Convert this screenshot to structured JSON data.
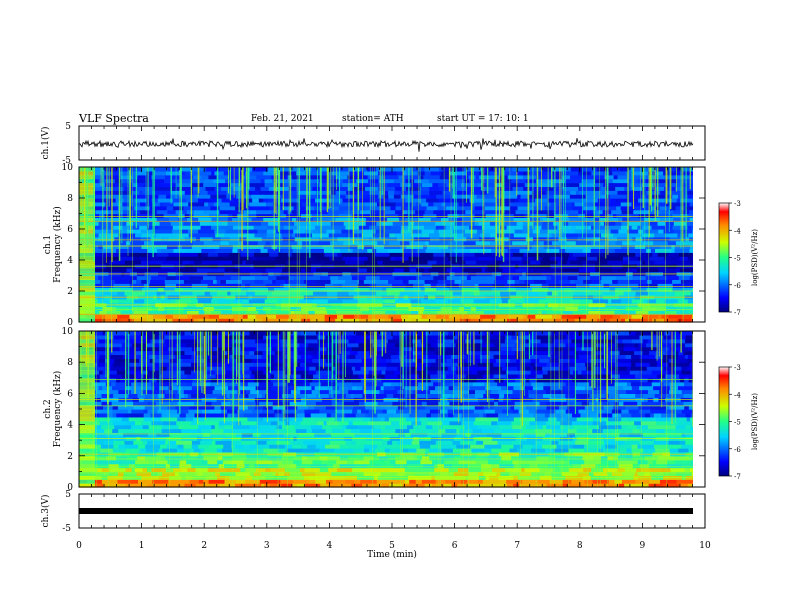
{
  "header": {
    "title": "VLF Spectra",
    "date": "Feb. 21, 2021",
    "station": "station= ATH",
    "start": "start UT = 17: 10: 1"
  },
  "chart_data": [
    {
      "type": "line",
      "panel": "ch1-waveform",
      "ylabel": "ch.1(V)",
      "ylim": [
        -5,
        5
      ],
      "yticks": [
        "5",
        "-5"
      ]
    },
    {
      "type": "heatmap",
      "panel": "ch1-spectrogram",
      "ylabel": "ch.1",
      "ylabel2": "Frequency (kHz)",
      "ylim": [
        0,
        10
      ],
      "yticks": [
        "0",
        "2",
        "4",
        "6",
        "8",
        "10"
      ],
      "colorbar": {
        "label": "log(PSD)(V²/Hz)",
        "ticks": [
          "-3",
          "-4",
          "-5",
          "-6",
          "-7"
        ],
        "range": [
          -7,
          -3
        ]
      }
    },
    {
      "type": "heatmap",
      "panel": "ch2-spectrogram",
      "ylabel": "ch.2",
      "ylabel2": "Frequency (kHz)",
      "ylim": [
        0,
        10
      ],
      "yticks": [
        "0",
        "2",
        "4",
        "6",
        "8",
        "10"
      ],
      "colorbar": {
        "label": "log(PSD)(V²/Hz)",
        "ticks": [
          "-3",
          "-4",
          "-5",
          "-6",
          "-7"
        ],
        "range": [
          -7,
          -3
        ]
      }
    },
    {
      "type": "line",
      "panel": "ch3-waveform",
      "ylabel": "ch.3(V)",
      "ylim": [
        -5,
        5
      ],
      "yticks": [
        "5",
        "-5"
      ],
      "xlabel": "Time (min)",
      "xlim": [
        0,
        10
      ],
      "xticks": [
        "0",
        "1",
        "2",
        "3",
        "4",
        "5",
        "6",
        "7",
        "8",
        "9",
        "10"
      ]
    }
  ]
}
